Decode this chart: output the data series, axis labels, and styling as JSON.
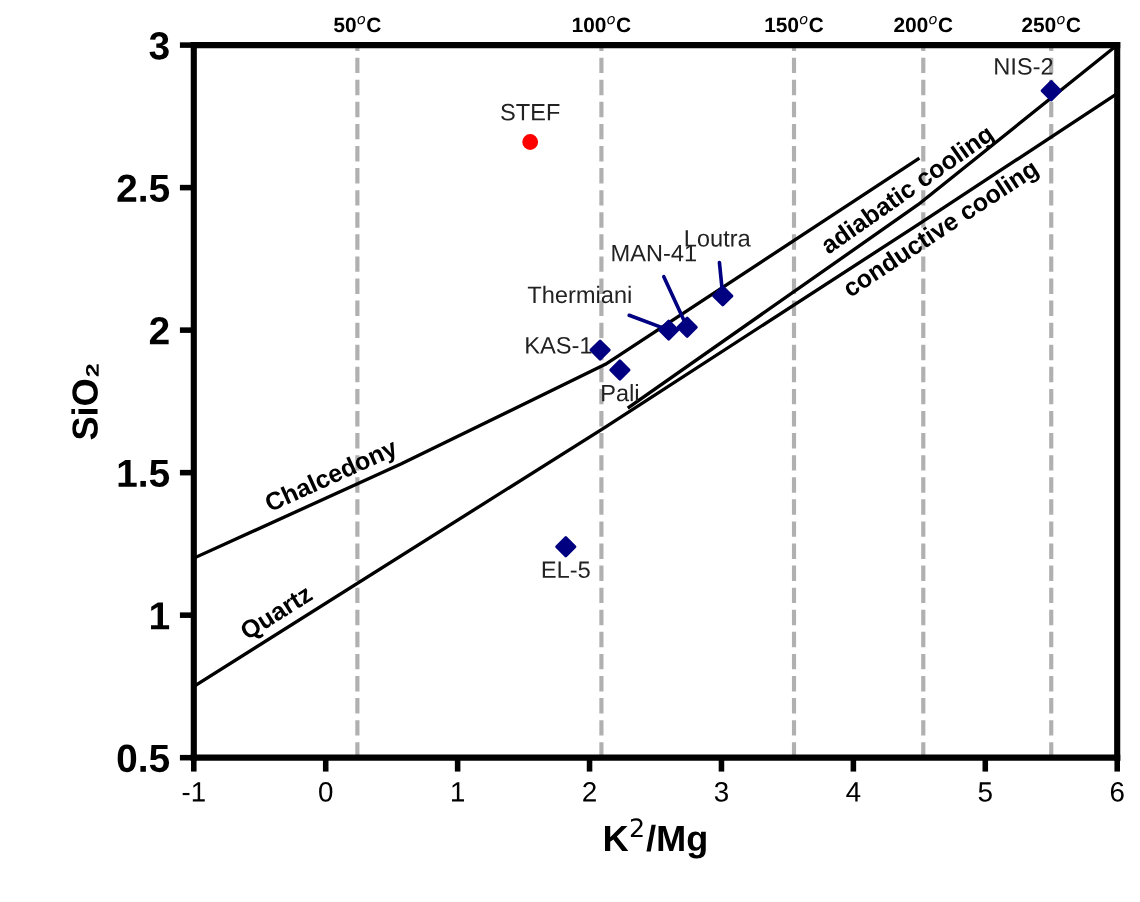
{
  "chart_data": {
    "type": "scatter",
    "xlabel": "K$^{2}$/Mg",
    "ylabel": "SiO₂",
    "xlim": [
      -1,
      6
    ],
    "xticks": [
      -1,
      0,
      1,
      2,
      3,
      4,
      5,
      6
    ],
    "ylim": [
      0.5,
      3
    ],
    "yticks": [
      0.5,
      1,
      1.5,
      2,
      2.5,
      3
    ],
    "grid": false,
    "series": [
      {
        "type": "line",
        "name": "Chalcedony",
        "color": "#000000",
        "marker": "none",
        "line_style": "solid",
        "x": [
          -1,
          0.57,
          2.12,
          4.49
        ],
        "values": [
          1.2,
          1.53,
          1.88,
          2.6
        ]
      },
      {
        "type": "line",
        "name": "Quartz",
        "color": "#000000",
        "marker": "none",
        "line_style": "solid",
        "x": [
          -1,
          2.12,
          4.49,
          6
        ],
        "values": [
          0.75,
          1.66,
          2.37,
          2.83
        ]
      },
      {
        "type": "line",
        "color": "#000000",
        "marker": "none",
        "line_style": "solid",
        "x": [
          2.3,
          4.49,
          6
        ],
        "values": [
          1.73,
          2.44,
          3
        ]
      },
      {
        "color": "#ff0000",
        "marker": "circle",
        "x": [
          1.55
        ],
        "values": [
          2.66
        ]
      },
      {
        "color": "#000080",
        "marker": "diamond",
        "x": [
          5.5,
          1.82,
          2.23,
          2.08,
          2.6,
          2.74,
          3.01
        ],
        "values": [
          2.84,
          1.24,
          1.86,
          1.93,
          2.0,
          2.01,
          2.12
        ]
      }
    ],
    "annotations": [
      {
        "text": "STEF",
        "x": 1.55,
        "y": 2.66
      },
      {
        "text": "NIS-2",
        "x": 5.5,
        "y": 2.84
      },
      {
        "text": "EL-5",
        "x": 1.82,
        "y": 1.24
      },
      {
        "text": "Pali",
        "x": 2.23,
        "y": 1.86
      },
      {
        "text": "KAS-1",
        "x": 2.08,
        "y": 1.93
      },
      {
        "text": "Thermiani",
        "x": 2.6,
        "y": 2.0
      },
      {
        "text": "MAN-41",
        "x": 2.74,
        "y": 2.01
      },
      {
        "text": "Loutra",
        "x": 3.01,
        "y": 2.12
      },
      {
        "text": "adiabatic cooling",
        "x": 4.49,
        "y": 2.44
      },
      {
        "text": "conductive cooling",
        "x": 4.6,
        "y": 2.4
      }
    ],
    "ref_lines": [
      {
        "axis": "x",
        "value": 0.24,
        "label": "50$^{o}$C",
        "color": "#b0b0b0",
        "line_style": "dashed"
      },
      {
        "axis": "x",
        "value": 2.09,
        "label": "100$^{o}$C",
        "color": "#b0b0b0",
        "line_style": "dashed"
      },
      {
        "axis": "x",
        "value": 3.55,
        "label": "150$^{o}$C",
        "color": "#b0b0b0",
        "line_style": "dashed"
      },
      {
        "axis": "x",
        "value": 4.53,
        "label": "200$^{o}$C",
        "color": "#b0b0b0",
        "line_style": "dashed"
      },
      {
        "axis": "x",
        "value": 5.5,
        "label": "250$^{o}$C",
        "color": "#b0b0b0",
        "line_style": "dashed"
      }
    ]
  }
}
